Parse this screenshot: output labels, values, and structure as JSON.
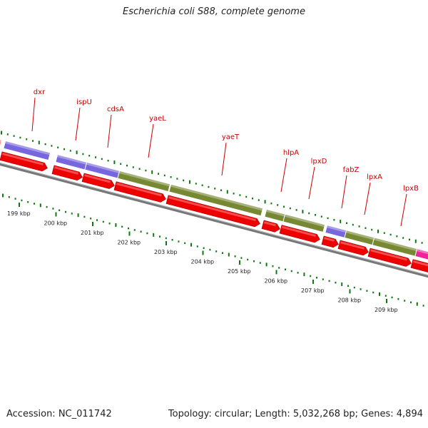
{
  "title": "Escherichia coli S88, complete genome",
  "footer": {
    "accession": "Accession: NC_011742",
    "summary": "Topology: circular; Length: 5,032,268 bp; Genes: 4,894"
  },
  "colors": {
    "gene_label": "#cc0000",
    "cds": "#ee0000",
    "cog_purple": "#7766dd",
    "cog_green": "#778833",
    "cog_pink": "#ee2299",
    "cog_salmon": "#ff8888",
    "tick_green": "#117711",
    "backbone": "#777777"
  },
  "scale": {
    "labels": [
      "199 kbp",
      "200 kbp",
      "201 kbp",
      "202 kbp",
      "203 kbp",
      "204 kbp",
      "205 kbp",
      "206 kbp",
      "207 kbp",
      "208 kbp",
      "209 kbp"
    ]
  },
  "genes": [
    {
      "name": "dxr"
    },
    {
      "name": "ispU"
    },
    {
      "name": "cdsA"
    },
    {
      "name": "yaeL"
    },
    {
      "name": "yaeT"
    },
    {
      "name": "hlpA"
    },
    {
      "name": "lpxD"
    },
    {
      "name": "fabZ"
    },
    {
      "name": "lpxA"
    },
    {
      "name": "lpxB"
    }
  ]
}
